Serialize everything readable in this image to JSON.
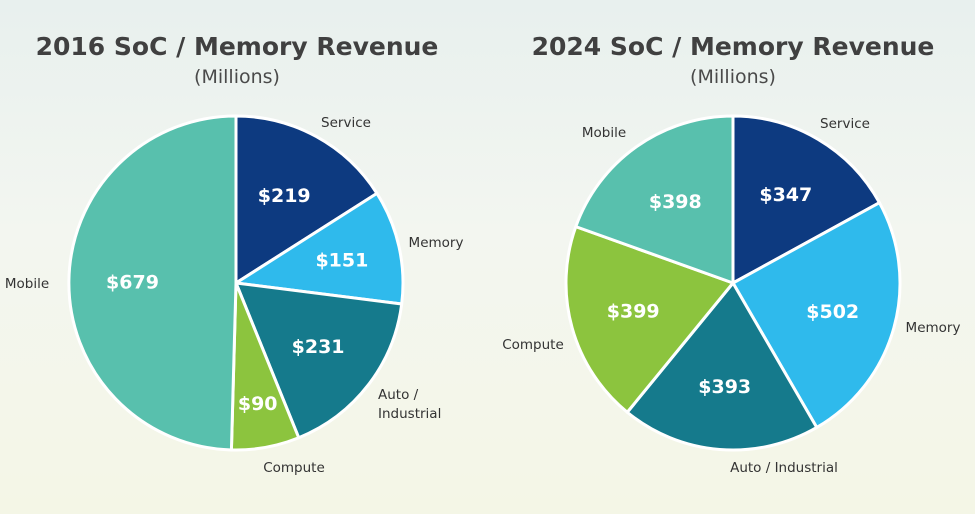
{
  "chart_data": [
    {
      "type": "pie",
      "title": "2016 SoC / Memory Revenue",
      "subtitle": "(Millions)",
      "slices": [
        {
          "label": "Service",
          "value": 219,
          "value_label": "$219",
          "color": "#0d3a80"
        },
        {
          "label": "Memory",
          "value": 151,
          "value_label": "$151",
          "color": "#2fbaec"
        },
        {
          "label": "Auto / Industrial",
          "value": 231,
          "value_label": "$231",
          "color": "#157a8c"
        },
        {
          "label": "Compute",
          "value": 90,
          "value_label": "$90",
          "color": "#8cc43e"
        },
        {
          "label": "Mobile",
          "value": 679,
          "value_label": "$679",
          "color": "#58c0ad"
        }
      ]
    },
    {
      "type": "pie",
      "title": "2024 SoC / Memory Revenue",
      "subtitle": "(Millions)",
      "slices": [
        {
          "label": "Service",
          "value": 347,
          "value_label": "$347",
          "color": "#0d3a80"
        },
        {
          "label": "Memory",
          "value": 502,
          "value_label": "$502",
          "color": "#2fbaec"
        },
        {
          "label": "Auto / Industrial",
          "value": 393,
          "value_label": "$393",
          "color": "#157a8c"
        },
        {
          "label": "Compute",
          "value": 399,
          "value_label": "$399",
          "color": "#8cc43e"
        },
        {
          "label": "Mobile",
          "value": 398,
          "value_label": "$398",
          "color": "#58c0ad"
        }
      ]
    }
  ]
}
